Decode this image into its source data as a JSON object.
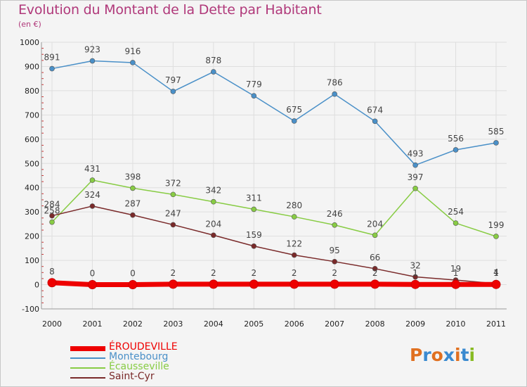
{
  "chart_data": {
    "type": "line",
    "title": "Evolution du Montant de la Dette par Habitant",
    "subtitle": "(en €)",
    "xlabel": "",
    "ylabel": "",
    "categories": [
      "2000",
      "2001",
      "2002",
      "2003",
      "2004",
      "2005",
      "2006",
      "2007",
      "2008",
      "2009",
      "2010",
      "2011"
    ],
    "ylim": [
      -100,
      1000
    ],
    "yticks": [
      -100,
      0,
      100,
      200,
      300,
      400,
      500,
      600,
      700,
      800,
      900,
      1000
    ],
    "grid": true,
    "series": [
      {
        "name": "Montebourg",
        "color": "#4a90c8",
        "values": [
          891,
          923,
          916,
          797,
          878,
          779,
          675,
          786,
          674,
          493,
          556,
          585
        ]
      },
      {
        "name": "Écausseville",
        "color": "#88cc44",
        "values": [
          258,
          431,
          398,
          372,
          342,
          311,
          280,
          246,
          204,
          397,
          254,
          199
        ]
      },
      {
        "name": "Saint-Cyr",
        "color": "#7a2a2a",
        "values": [
          284,
          324,
          287,
          247,
          204,
          159,
          122,
          95,
          66,
          32,
          19,
          4
        ]
      },
      {
        "name": "ÉROUDEVILLE",
        "color": "#ee0000",
        "values": [
          8,
          0,
          0,
          2,
          2,
          2,
          2,
          2,
          2,
          1,
          1,
          1
        ]
      }
    ],
    "legend_order": [
      "ÉROUDEVILLE",
      "Montebourg",
      "Écausseville",
      "Saint-Cyr"
    ]
  },
  "logo": {
    "text": "Proxiti",
    "colors": [
      "#e07020",
      "#3a8ad0",
      "#e07020",
      "#3a8ad0",
      "#e07020",
      "#3a8ad0",
      "#88bb22"
    ]
  }
}
